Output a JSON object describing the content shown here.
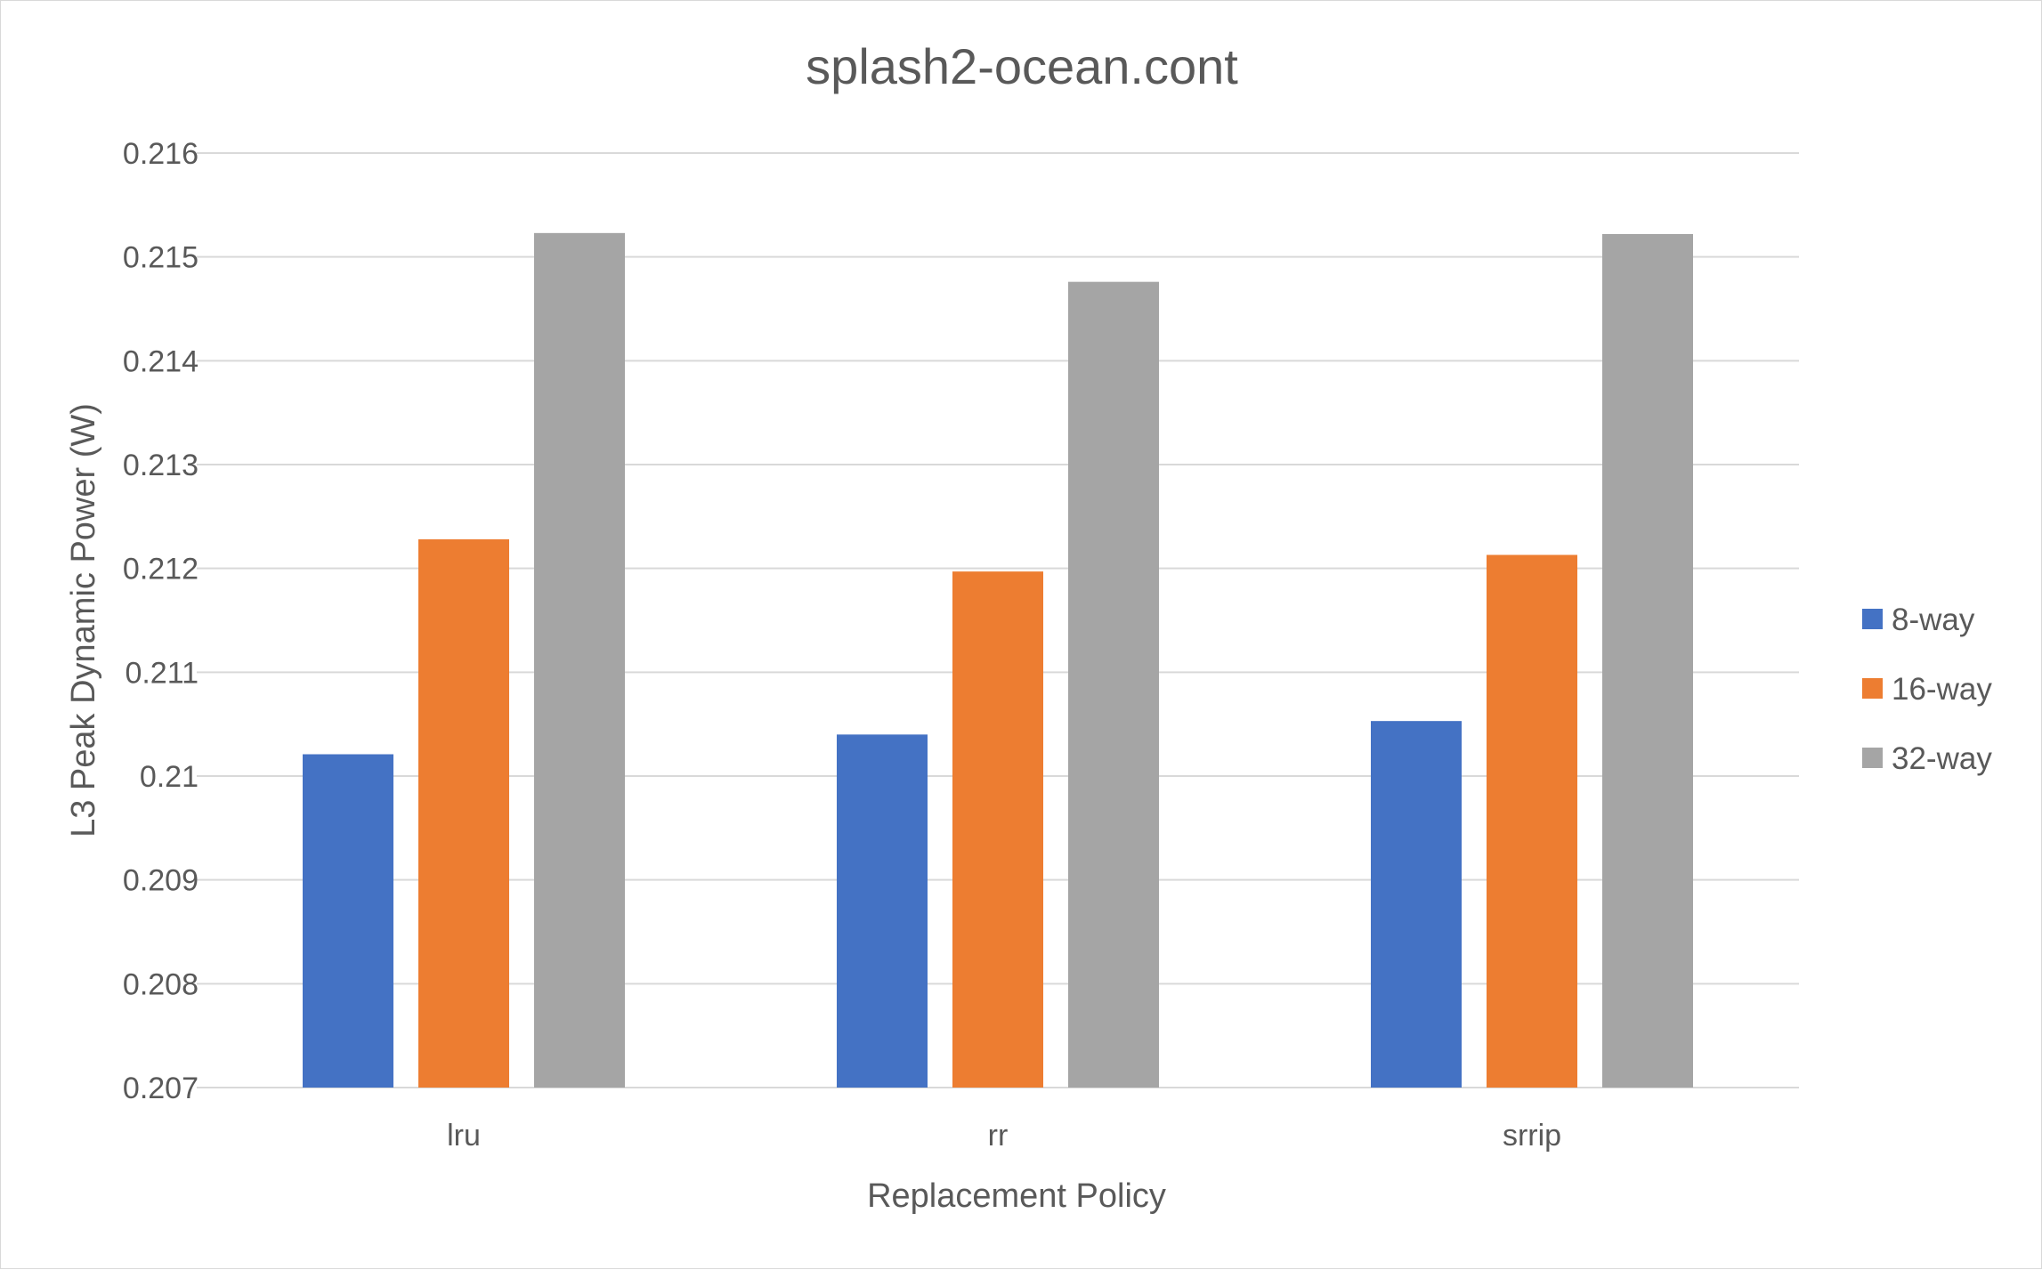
{
  "chart_data": {
    "type": "bar",
    "title": "splash2-ocean.cont",
    "xlabel": "Replacement Policy",
    "ylabel": "L3 Peak Dynamic Power (W)",
    "categories": [
      "lru",
      "rr",
      "srrip"
    ],
    "series": [
      {
        "name": "8-way",
        "color": "#4472c4",
        "values": [
          0.21021,
          0.2104,
          0.21053
        ]
      },
      {
        "name": "16-way",
        "color": "#ed7d31",
        "values": [
          0.21228,
          0.21197,
          0.21213
        ]
      },
      {
        "name": "32-way",
        "color": "#a5a5a5",
        "values": [
          0.21523,
          0.21476,
          0.21522
        ]
      }
    ],
    "ylim": [
      0.207,
      0.216
    ],
    "yticks": [
      "0.216",
      "0.215",
      "0.214",
      "0.213",
      "0.212",
      "0.211",
      "0.21",
      "0.209",
      "0.208",
      "0.207"
    ],
    "grid": true,
    "legend_position": "right"
  }
}
